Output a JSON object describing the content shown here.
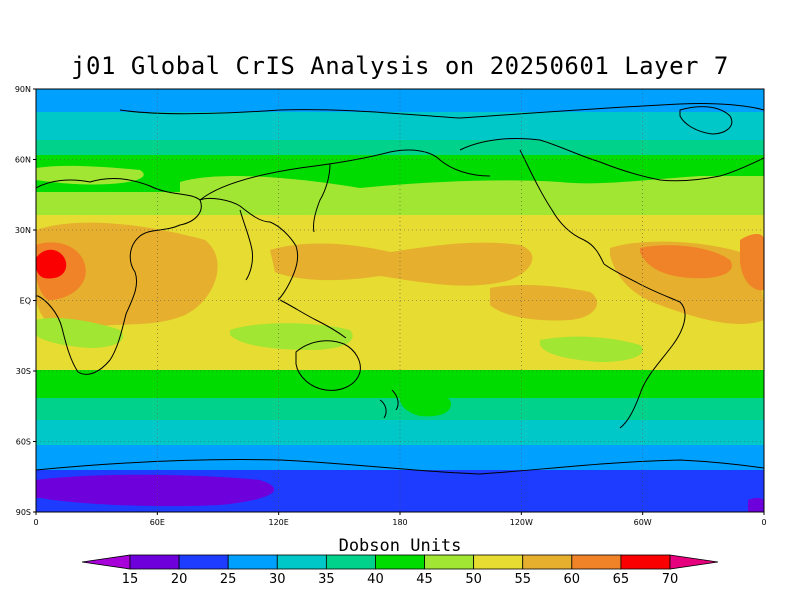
{
  "title": "j01 Global CrIS Analysis on 20250601 Layer 7",
  "map": {
    "lat_ticks": [
      "90N",
      "60N",
      "30N",
      "EQ",
      "30S",
      "60S",
      "90S"
    ],
    "lon_ticks": [
      "0",
      "60E",
      "120E",
      "180",
      "120W",
      "60W",
      "0"
    ],
    "grid_lines": "dotted"
  },
  "colorbar": {
    "title": "Dobson Units",
    "labels": [
      "15",
      "20",
      "25",
      "30",
      "35",
      "40",
      "45",
      "50",
      "55",
      "60",
      "65",
      "70"
    ],
    "colors": [
      "#a800d8",
      "#6e00dc",
      "#1e3cff",
      "#00a0ff",
      "#00c8c8",
      "#00d28c",
      "#00dc00",
      "#a0e632",
      "#e6dc32",
      "#e6af2d",
      "#f08228",
      "#fa0000",
      "#e6007d"
    ]
  },
  "field_colors": {
    "purple": "#6e00dc",
    "blue": "#1e3cff",
    "sky": "#00a0ff",
    "cyan": "#00c8c8",
    "teal": "#00d28c",
    "green": "#00dc00",
    "lime": "#a0e632",
    "yellow": "#e6dc32",
    "gold": "#e6af2d",
    "orange": "#f08228",
    "red": "#fa0000"
  }
}
